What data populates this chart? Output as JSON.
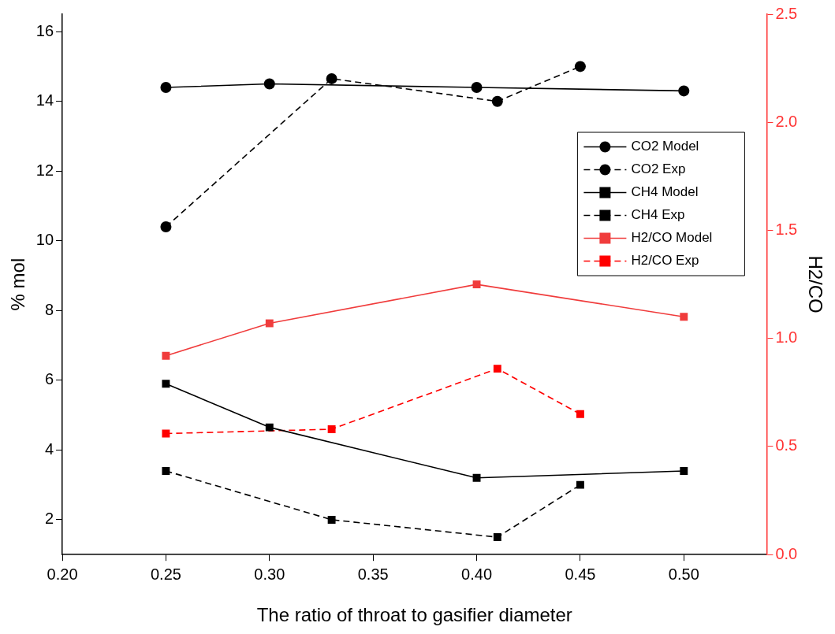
{
  "chart_data": {
    "type": "line",
    "xlabel": "The ratio of throat to gasifier diameter",
    "ylabel": "% mol",
    "y2label": "H2/CO",
    "xlim": [
      0.2,
      0.54
    ],
    "xticks": [
      {
        "value": 0.2,
        "label": "0.20"
      },
      {
        "value": 0.25,
        "label": "0.25"
      },
      {
        "value": 0.3,
        "label": "0.30"
      },
      {
        "value": 0.35,
        "label": "0.35"
      },
      {
        "value": 0.4,
        "label": "0.40"
      },
      {
        "value": 0.45,
        "label": "0.45"
      },
      {
        "value": 0.5,
        "label": "0.50"
      }
    ],
    "ylim": [
      1,
      16.5
    ],
    "yticks": [
      2,
      4,
      6,
      8,
      10,
      12,
      14,
      16
    ],
    "y2lim": [
      0,
      2.5
    ],
    "y2ticks": [
      {
        "value": 0,
        "label": "0.0"
      },
      0.5,
      {
        "value": 1,
        "label": "1.0"
      },
      1.5,
      {
        "value": 2,
        "label": "2.0"
      },
      2.5
    ],
    "grid": false,
    "legend": "right",
    "series": [
      {
        "name": "CO2 Model",
        "color": "#000000",
        "marker": "circle",
        "line_style": "solid",
        "x": [
          0.25,
          0.3,
          0.4,
          0.5
        ],
        "values": [
          14.4,
          14.5,
          14.4,
          14.3
        ]
      },
      {
        "name": "CO2 Exp",
        "color": "#000000",
        "marker": "circle",
        "line_style": "dashed",
        "x": [
          0.25,
          0.33,
          0.41,
          0.45
        ],
        "values": [
          10.4,
          14.65,
          14.0,
          15.0
        ]
      },
      {
        "name": "CH4 Model",
        "color": "#000000",
        "marker": "square",
        "line_style": "solid",
        "x": [
          0.25,
          0.3,
          0.4,
          0.5
        ],
        "values": [
          5.9,
          4.65,
          3.2,
          3.4
        ]
      },
      {
        "name": "CH4 Exp",
        "color": "#000000",
        "marker": "square",
        "line_style": "dashed",
        "x": [
          0.25,
          0.33,
          0.41,
          0.45
        ],
        "values": [
          3.4,
          2.0,
          1.5,
          3.0
        ]
      },
      {
        "name": "H2/CO Model",
        "color": "#f03c3c",
        "marker": "square",
        "line_style": "solid",
        "axis": "y2",
        "x": [
          0.25,
          0.3,
          0.4,
          0.5
        ],
        "values": [
          0.92,
          1.07,
          1.25,
          1.1
        ]
      },
      {
        "name": "H2/CO Exp",
        "color": "#ff0000",
        "marker": "square",
        "line_style": "dashed",
        "axis": "y2",
        "x": [
          0.25,
          0.33,
          0.41,
          0.45
        ],
        "values": [
          0.56,
          0.58,
          0.86,
          0.65
        ]
      }
    ]
  }
}
